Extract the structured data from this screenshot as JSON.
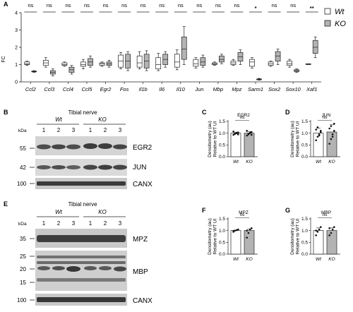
{
  "figure": {
    "panel_labels": [
      "A",
      "B",
      "C",
      "D",
      "E",
      "F",
      "G"
    ],
    "colors": {
      "wt_fill": "#ffffff",
      "ko_fill": "#b3b3b3",
      "stroke": "#222222"
    }
  },
  "chart_data": [
    {
      "panel": "A",
      "type": "box",
      "ylabel": "FC",
      "ylim": [
        0,
        4
      ],
      "yticks": [
        "0",
        "1",
        "2",
        "3",
        "4"
      ],
      "categories": [
        "Ccl2",
        "Ccl3",
        "Ccl4",
        "Ccl5",
        "Egr2",
        "Fos",
        "Il1b",
        "Il6",
        "Il10",
        "Jun",
        "Mbp",
        "Mpz",
        "Sarm1",
        "Sox2",
        "Sox10",
        "Xaf1"
      ],
      "significance": [
        "ns",
        "ns",
        "ns",
        "ns",
        "ns",
        "ns",
        "ns",
        "ns",
        "ns",
        "ns",
        "ns",
        "ns",
        "*",
        "ns",
        "ns",
        "**"
      ],
      "legend": [
        "Wt",
        "KO"
      ],
      "series": [
        {
          "name": "Wt",
          "boxes": [
            [
              0.95,
              1.0,
              1.05,
              1.15,
              1.2
            ],
            [
              0.85,
              0.95,
              1.1,
              1.25,
              1.4
            ],
            [
              0.9,
              0.95,
              1.0,
              1.1,
              1.15
            ],
            [
              0.75,
              0.9,
              1.0,
              1.15,
              1.3
            ],
            [
              0.9,
              0.95,
              1.05,
              1.1,
              1.15
            ],
            [
              0.75,
              0.85,
              1.2,
              1.55,
              1.7
            ],
            [
              0.75,
              0.85,
              1.1,
              1.5,
              1.75
            ],
            [
              0.65,
              0.75,
              1.0,
              1.4,
              1.65
            ],
            [
              0.7,
              0.85,
              1.15,
              1.6,
              1.85
            ],
            [
              0.8,
              0.9,
              1.05,
              1.3,
              1.4
            ],
            [
              0.95,
              1.0,
              1.05,
              1.1,
              1.15
            ],
            [
              0.95,
              1.0,
              1.1,
              1.2,
              1.3
            ],
            [
              0.8,
              0.9,
              1.15,
              1.3,
              1.4
            ],
            [
              0.9,
              0.95,
              1.05,
              1.15,
              1.2
            ],
            [
              0.85,
              0.95,
              1.05,
              1.2,
              1.3
            ],
            [
              1.0,
              1.0,
              1.02,
              1.05,
              1.05
            ]
          ]
        },
        {
          "name": "KO",
          "boxes": [
            [
              0.55,
              0.58,
              0.6,
              0.62,
              0.65
            ],
            [
              0.35,
              0.45,
              0.55,
              0.65,
              0.75
            ],
            [
              0.45,
              0.55,
              0.7,
              0.85,
              0.95
            ],
            [
              0.85,
              0.95,
              1.15,
              1.35,
              1.5
            ],
            [
              0.85,
              0.95,
              1.05,
              1.15,
              1.25
            ],
            [
              0.65,
              0.8,
              1.2,
              1.6,
              1.75
            ],
            [
              0.65,
              0.8,
              1.2,
              1.6,
              1.8
            ],
            [
              0.85,
              1.0,
              1.3,
              1.6,
              1.75
            ],
            [
              1.0,
              1.3,
              1.9,
              2.6,
              3.2
            ],
            [
              0.85,
              0.95,
              1.15,
              1.4,
              1.55
            ],
            [
              1.05,
              1.15,
              1.3,
              1.5,
              1.6
            ],
            [
              1.0,
              1.2,
              1.45,
              1.7,
              1.85
            ],
            [
              0.1,
              0.12,
              0.15,
              0.17,
              0.2
            ],
            [
              1.0,
              1.2,
              1.5,
              1.75,
              1.9
            ],
            [
              0.55,
              0.6,
              0.65,
              0.7,
              0.75
            ],
            [
              1.4,
              1.65,
              2.0,
              2.4,
              2.6
            ]
          ]
        }
      ]
    },
    {
      "panel": "C",
      "type": "bar",
      "title": "EGR2",
      "ylabel": "Densitometry (au) Relative to WT UI",
      "ylim": [
        0,
        1.5
      ],
      "yticks": [
        "0.0",
        "0.5",
        "1.0",
        "1.5"
      ],
      "categories": [
        "Wt",
        "KO"
      ],
      "values": [
        1.0,
        1.0
      ],
      "sig": "ns",
      "points": [
        [
          0.93,
          0.97,
          1.0,
          1.03,
          1.07,
          0.98,
          1.02,
          0.95
        ],
        [
          0.9,
          0.95,
          1.0,
          1.05,
          1.1,
          0.97,
          1.02,
          0.93
        ]
      ]
    },
    {
      "panel": "D",
      "type": "bar",
      "title": "JUN",
      "ylabel": "Densitometry (au) Relative to WT UI",
      "ylim": [
        0,
        1.5
      ],
      "yticks": [
        "0.0",
        "0.5",
        "1.0",
        "1.5"
      ],
      "categories": [
        "Wt",
        "KO"
      ],
      "values": [
        1.0,
        1.05
      ],
      "sig": "ns",
      "points": [
        [
          0.7,
          0.85,
          0.95,
          1.05,
          1.15,
          1.25,
          0.9,
          1.1
        ],
        [
          0.55,
          0.75,
          0.95,
          1.1,
          1.2,
          1.3,
          0.85,
          1.4
        ]
      ]
    },
    {
      "panel": "F",
      "type": "bar",
      "title": "MPZ",
      "ylabel": "Densitometry (au) Relative to WT UI",
      "ylim": [
        0,
        1.5
      ],
      "yticks": [
        "0.0",
        "0.5",
        "1.0",
        "1.5"
      ],
      "categories": [
        "Wt",
        "KO"
      ],
      "values": [
        1.0,
        1.0
      ],
      "sig": "ns",
      "points": [
        [
          0.95,
          1.0,
          1.02,
          1.05,
          0.98
        ],
        [
          0.7,
          0.9,
          1.05,
          1.1,
          1.0
        ]
      ]
    },
    {
      "panel": "G",
      "type": "bar",
      "title": "MBP",
      "ylabel": "Densitometry (au) Relative to WT UI",
      "ylim": [
        0,
        1.5
      ],
      "yticks": [
        "0.0",
        "0.5",
        "1.0",
        "1.5"
      ],
      "categories": [
        "Wt",
        "KO"
      ],
      "values": [
        1.0,
        1.0
      ],
      "sig": "ns",
      "points": [
        [
          0.8,
          0.95,
          1.05,
          1.15,
          1.0
        ],
        [
          0.8,
          0.9,
          1.05,
          1.15,
          1.1
        ]
      ]
    }
  ],
  "blot_B": {
    "title": "Tibial nerve",
    "groups": [
      "Wt",
      "KO"
    ],
    "lanes": [
      "1",
      "2",
      "3",
      "1",
      "2",
      "3"
    ],
    "kda_label": "kDa",
    "markers": [
      "55",
      "42",
      "100"
    ],
    "proteins": [
      "EGR2",
      "JUN",
      "CANX"
    ]
  },
  "blot_E": {
    "title": "Tibial nerve",
    "groups": [
      "Wt",
      "KO"
    ],
    "lanes": [
      "1",
      "2",
      "3",
      "1",
      "2",
      "3"
    ],
    "kda_label": "kDa",
    "markers": [
      "35",
      "25",
      "20",
      "15",
      "100"
    ],
    "proteins": [
      "MPZ",
      "MBP",
      "CANX"
    ]
  }
}
